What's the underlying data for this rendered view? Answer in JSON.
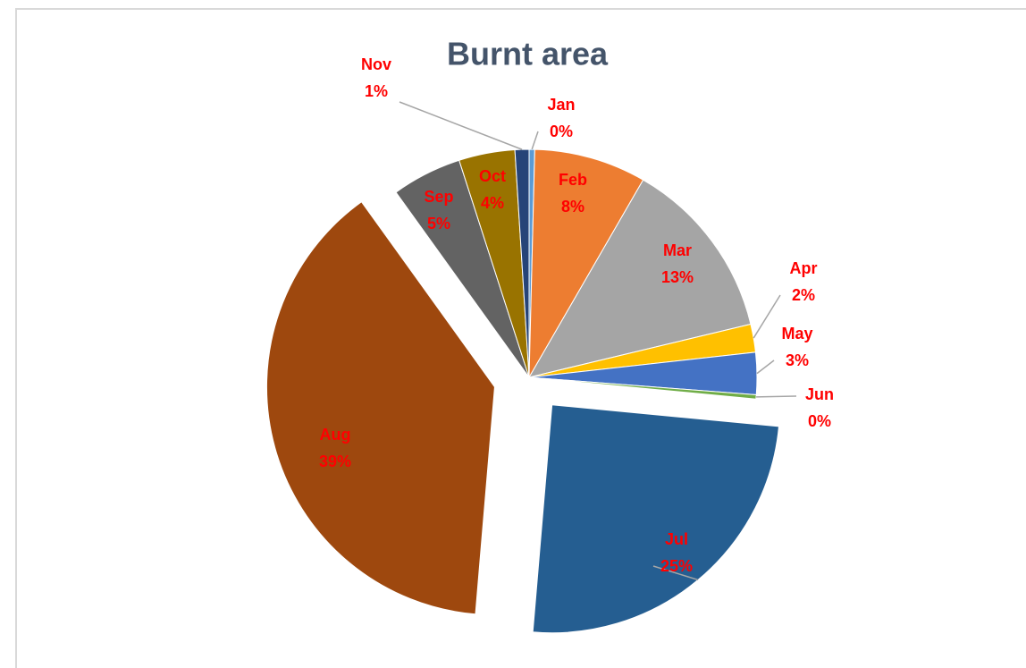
{
  "chart_data": {
    "type": "pie",
    "title": "Burnt area",
    "categories": [
      "Jan",
      "Feb",
      "Mar",
      "Apr",
      "May",
      "Jun",
      "Jul",
      "Aug",
      "Sep",
      "Oct",
      "Nov"
    ],
    "values": [
      0.4,
      8,
      13,
      2,
      3,
      0.3,
      25,
      39,
      5,
      4,
      1
    ],
    "value_labels": [
      "0%",
      "8%",
      "13%",
      "2%",
      "3%",
      "0%",
      "25%",
      "39%",
      "5%",
      "4%",
      "1%"
    ],
    "colors": [
      "#5b9bd5",
      "#ed7d31",
      "#a5a5a5",
      "#ffc000",
      "#4472c4",
      "#70ad47",
      "#255e91",
      "#9e480e",
      "#636363",
      "#997300",
      "#264478"
    ],
    "explode": [
      0,
      0,
      0,
      0,
      0,
      0,
      1,
      1,
      0,
      0,
      0
    ]
  }
}
